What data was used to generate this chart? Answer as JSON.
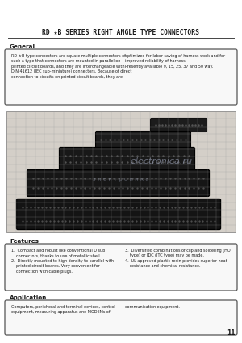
{
  "bg_color": "#ffffff",
  "title": "RD ★B SERIES RIGHT ANGLE TYPE CONNECTORS",
  "title_fontsize": 5.8,
  "line_color": "#444444",
  "section_general": "General",
  "general_text_left": "RD ★B type connectors are square multiple connectors of\nsuch a type that connectors are mounted in parallel on\nprinted circuit boards, and they are interchangeable with\nDIN 41612 (IEC sub-miniature) connectors. Because of direct\nconnection to circuits on printed circuit boards, they are",
  "general_text_right": "optimized for labor saving of harness work and for\nimproved reliability of harness.\nPresently available 9, 15, 25, 37 and 50 way.",
  "section_features": "Features",
  "features_text_left": "1.  Compact and robust like conventional D sub\n    connectors, thanks to use of metallic shell.\n2.  Directly mounted to high density to parallel with\n    printed circuit boards. Very convenient for\n    connection with cable plugs.",
  "features_text_right": "3.  Diversified combinations of clip and soldering (HO\n    type) or IDC (ITC type) may be made.\n4.  UL approved plastic resin provides superior heat\n    resistance and chemical resistance.",
  "section_application": "Application",
  "application_text": "Computers, peripheral and terminal devices, control\nequipment, measuring apparatus and MODEMs of",
  "application_text_right": "communication equipment.",
  "page_number": "11",
  "text_color": "#1a1a1a",
  "body_text_size": 3.5,
  "section_fontsize": 5.2,
  "grid_color": "#999999",
  "grid_bg": "#d4cfc8",
  "connector_dark": "#181818",
  "watermark_color": "#b0b8d0",
  "watermark_alpha": 0.55
}
